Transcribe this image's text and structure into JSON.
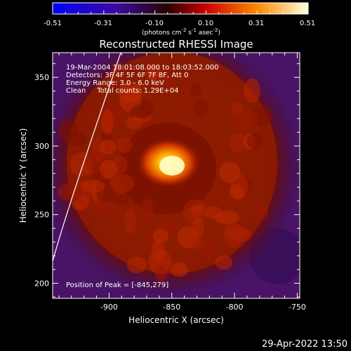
{
  "colorbar": {
    "ticks": [
      "-0.51",
      "-0.31",
      "-0.10",
      "0.10",
      "0.31",
      "0.51"
    ],
    "units_main": "(photons cm",
    "units_sup1": "-2",
    "units_mid": " s",
    "units_sup2": "-1",
    "units_mid2": " asec",
    "units_sup3": "-2",
    "units_end": ")"
  },
  "chart_data": {
    "type": "heatmap",
    "title": "Reconstructed RHESSI Image",
    "xlabel": "Heliocentric X (arcsec)",
    "ylabel": "Heliocentric Y (arcsec)",
    "xlim": [
      -945,
      -748
    ],
    "ylim": [
      189,
      368
    ],
    "x_ticks": [
      -900,
      -850,
      -800,
      -750
    ],
    "y_ticks": [
      200,
      250,
      300,
      350
    ],
    "x_tick_labels": [
      "-900",
      "-850",
      "-800",
      "-750"
    ],
    "y_tick_labels": [
      "200",
      "250",
      "300",
      "350"
    ],
    "color_range": [
      -0.51,
      0.51
    ],
    "peak": [
      -845,
      279
    ],
    "grid": false,
    "annotations": {
      "line1": "19-Mar-2004 18:01:08.000 to 18:03:52.000",
      "line2": "Detectors: 3F 4F 5F 6F 7F 8F, Att 0",
      "line3": "Energy Range: 3.0 - 6.0 keV",
      "line4": "Clean     Total counts: 1.29E+04",
      "peak_label": "Position of Peak = [-845,279]"
    }
  },
  "timestamp": "29-Apr-2022 13:50"
}
